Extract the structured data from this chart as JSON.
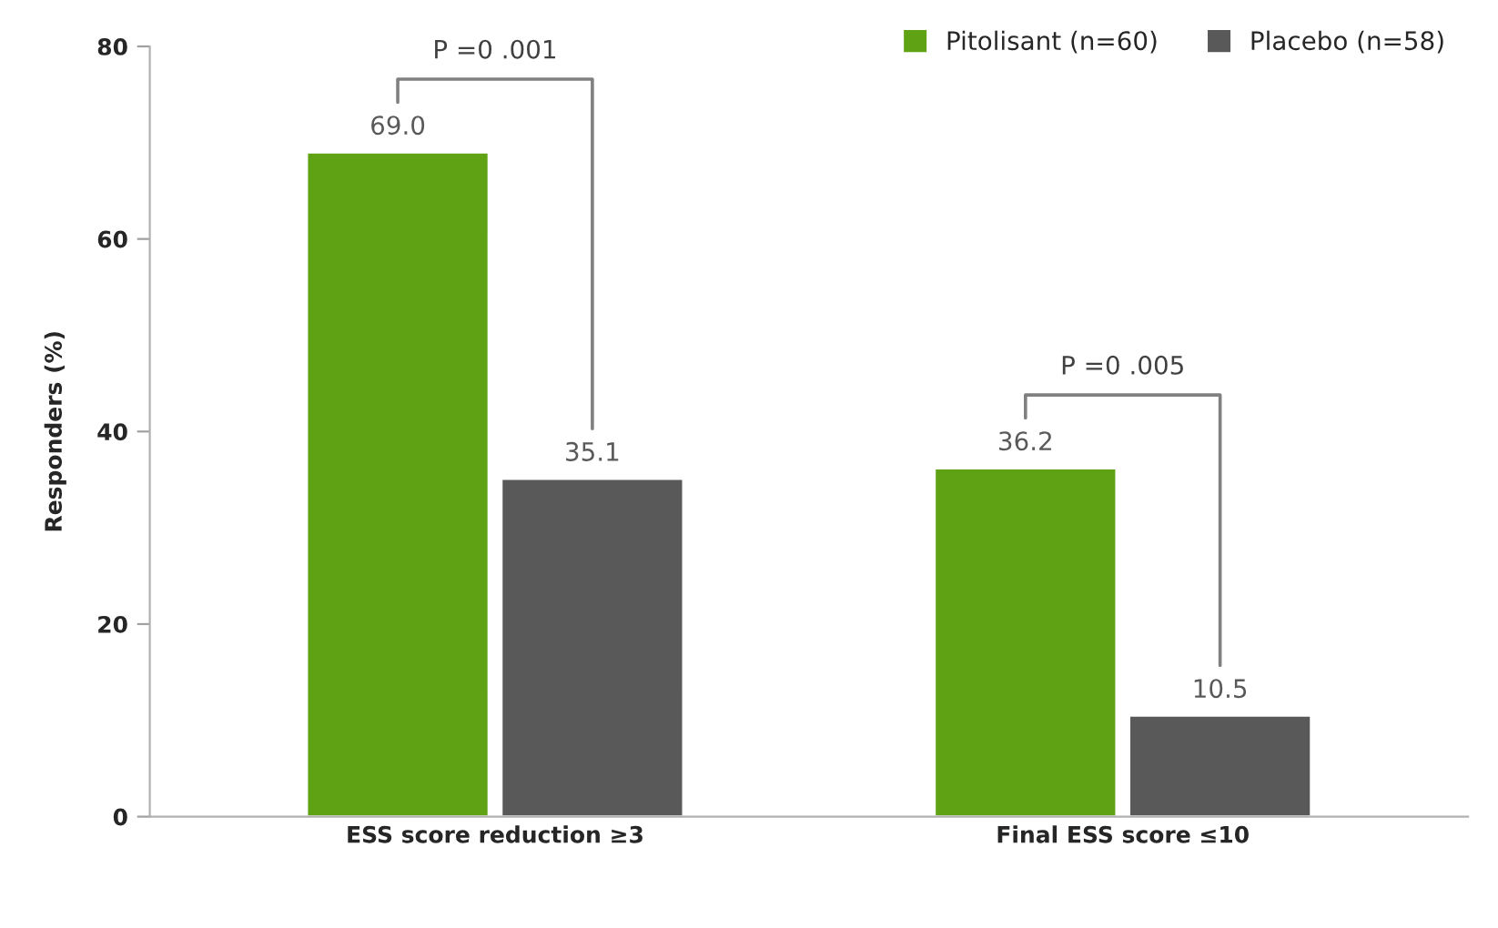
{
  "chart_data": {
    "type": "bar",
    "ylabel": "Responders (%)",
    "categories": [
      "ESS score reduction ≥3",
      "Final ESS score ≤10"
    ],
    "series": [
      {
        "name": "Pitolisant (n=60)",
        "color": "#5fa214",
        "values": [
          69.0,
          36.2
        ],
        "value_labels": [
          "69.0",
          "36.2"
        ]
      },
      {
        "name": "Placebo (n=58)",
        "color": "#595959",
        "values": [
          35.1,
          10.5
        ],
        "value_labels": [
          "35.1",
          "10.5"
        ]
      }
    ],
    "ylim": [
      0,
      80
    ],
    "yticks": [
      0,
      20,
      40,
      60,
      80
    ],
    "grid": false,
    "legend": "top right",
    "annotations": [
      "P =0 .001",
      "P =0 .005"
    ]
  }
}
